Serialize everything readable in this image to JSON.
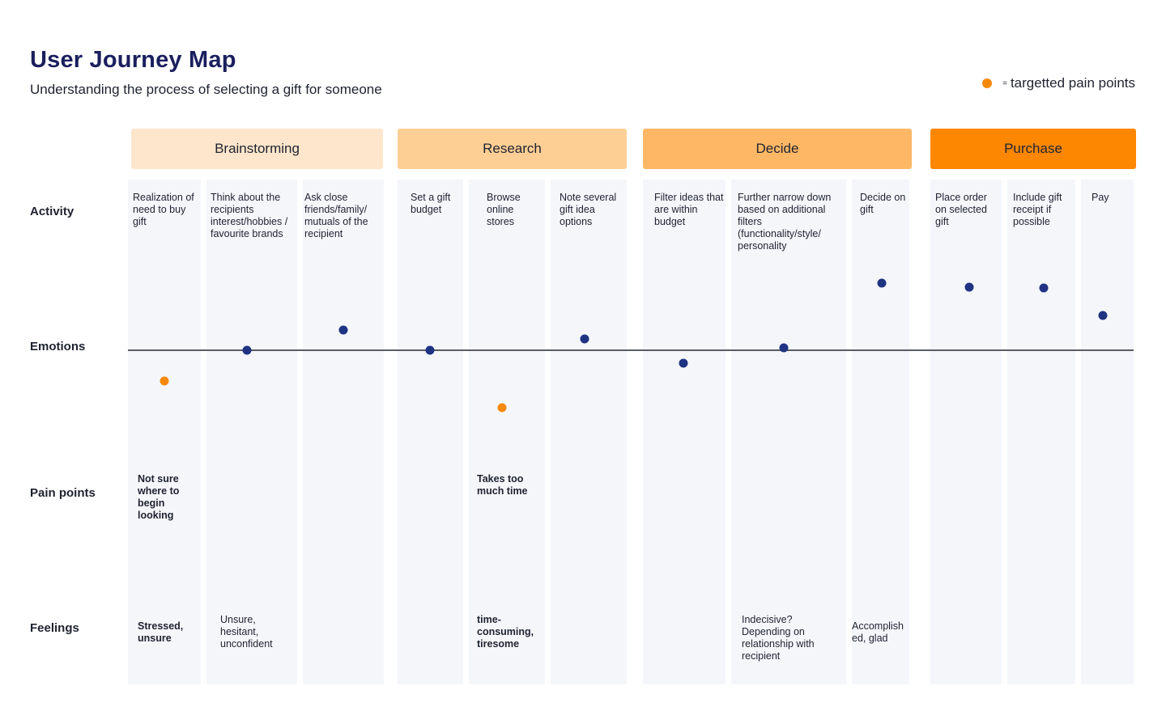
{
  "header": {
    "title": "User Journey Map",
    "subtitle": "Understanding the process of selecting a gift for someone",
    "legend_text": "targetted pain points",
    "legend_eq": "="
  },
  "rows": {
    "activity": "Activity",
    "emotions": "Emotions",
    "pain_points": "Pain points",
    "feelings": "Feelings"
  },
  "phases": [
    {
      "name": "Brainstorming",
      "color": "#fde6cb"
    },
    {
      "name": "Research",
      "color": "#fecf95"
    },
    {
      "name": "Decide",
      "color": "#feb765"
    },
    {
      "name": "Purchase",
      "color": "#fe8702"
    }
  ],
  "steps": [
    {
      "activity": "Realization of need to buy gift",
      "emotion": -0.38,
      "pain_target": true,
      "pain": "Not sure where to begin looking",
      "feeling": "Stressed, unsure",
      "feeling_bold": true
    },
    {
      "activity": "Think about the recipients interest/hobbies / favourite brands",
      "emotion": 0.0,
      "pain_target": false,
      "pain": "",
      "feeling": "Unsure, hesitant, unconfident",
      "feeling_bold": false
    },
    {
      "activity": "Ask close friends/family/ mutuals of the recipient",
      "emotion": 0.25,
      "pain_target": false,
      "pain": "",
      "feeling": "",
      "feeling_bold": false
    },
    {
      "activity": "Set a gift budget",
      "emotion": 0.0,
      "pain_target": false,
      "pain": "",
      "feeling": "",
      "feeling_bold": false
    },
    {
      "activity": "Browse online stores",
      "emotion": -0.71,
      "pain_target": true,
      "pain": "Takes too much time",
      "feeling": "time-consuming, tiresome",
      "feeling_bold": true
    },
    {
      "activity": "Note several gift idea options",
      "emotion": 0.14,
      "pain_target": false,
      "pain": "",
      "feeling": "",
      "feeling_bold": false
    },
    {
      "activity": "Filter ideas that are within budget",
      "emotion": -0.16,
      "pain_target": false,
      "pain": "",
      "feeling": "",
      "feeling_bold": false
    },
    {
      "activity": "Further narrow down based on additional filters (functionality/style/ personality",
      "emotion": 0.03,
      "pain_target": false,
      "pain": "",
      "feeling": "Indecisive? Depending on relationship with recipient",
      "feeling_bold": false
    },
    {
      "activity": "Decide on gift",
      "emotion": 0.83,
      "pain_target": false,
      "pain": "",
      "feeling": "Accomplish ed, glad",
      "feeling_bold": false
    },
    {
      "activity": "Place order on selected gift",
      "emotion": 0.78,
      "pain_target": false,
      "pain": "",
      "feeling": "",
      "feeling_bold": false
    },
    {
      "activity": "Include gift receipt if possible",
      "emotion": 0.77,
      "pain_target": false,
      "pain": "",
      "feeling": "",
      "feeling_bold": false
    },
    {
      "activity": "Pay",
      "emotion": 0.43,
      "pain_target": false,
      "pain": "",
      "feeling": "",
      "feeling_bold": false
    }
  ]
}
